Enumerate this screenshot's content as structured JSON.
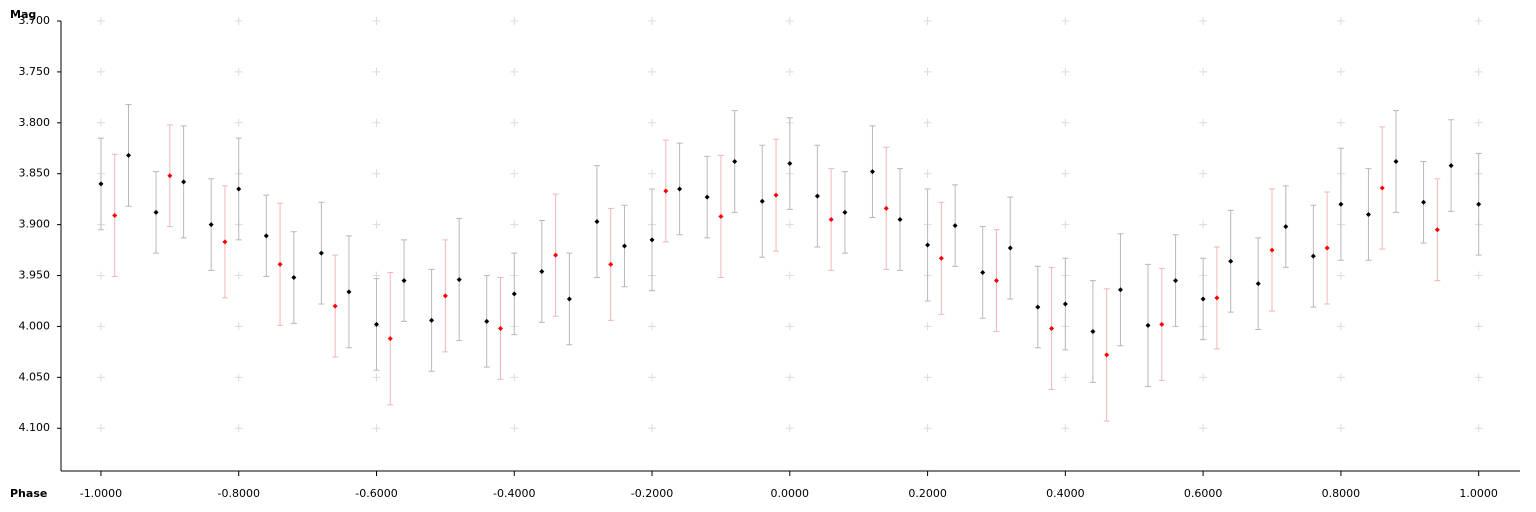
{
  "chart_data": {
    "type": "errorbar_scatter",
    "x_label": "Phase",
    "y_label": "Mag",
    "xlim": [
      -1.058,
      1.06
    ],
    "ylim": [
      4.142,
      3.7
    ],
    "xticks": [
      {
        "value": -1.0,
        "label": "-1.0000"
      },
      {
        "value": -0.8,
        "label": "-0.8000"
      },
      {
        "value": -0.6,
        "label": "-0.6000"
      },
      {
        "value": -0.4,
        "label": "-0.4000"
      },
      {
        "value": -0.2,
        "label": "-0.2000"
      },
      {
        "value": 0,
        "label": "0.0000"
      },
      {
        "value": 0.2,
        "label": "0.2000"
      },
      {
        "value": 0.4,
        "label": "0.4000"
      },
      {
        "value": 0.6,
        "label": "0.6000"
      },
      {
        "value": 0.8,
        "label": "0.8000"
      },
      {
        "value": 1.0,
        "label": "1.0000"
      }
    ],
    "yticks": [
      {
        "value": 3.7,
        "label": "3.700"
      },
      {
        "value": 3.75,
        "label": "3.750"
      },
      {
        "value": 3.8,
        "label": "3.800"
      },
      {
        "value": 3.85,
        "label": "3.850"
      },
      {
        "value": 3.9,
        "label": "3.900"
      },
      {
        "value": 3.95,
        "label": "3.950"
      },
      {
        "value": 4.0,
        "label": "4.000"
      },
      {
        "value": 4.05,
        "label": "4.050"
      },
      {
        "value": 4.1,
        "label": "4.100"
      }
    ],
    "grid": "cross",
    "series": [
      {
        "color": "#000000",
        "error_color": "#b8b8b8",
        "x": [
          -1.0,
          -0.96,
          -0.92,
          -0.88,
          -0.84,
          -0.8,
          -0.76,
          -0.72,
          -0.68,
          -0.64,
          -0.6,
          -0.56,
          -0.52,
          -0.48,
          -0.44,
          -0.4,
          -0.36,
          -0.32,
          -0.28,
          -0.24,
          -0.2,
          -0.16,
          -0.12,
          -0.08,
          -0.04,
          0,
          0.04,
          0.08,
          0.12,
          0.16,
          0.2,
          0.24,
          0.28,
          0.32,
          0.36,
          0.4,
          0.44,
          0.48,
          0.52,
          0.56,
          0.6,
          0.64,
          0.68,
          0.72,
          0.76,
          0.8,
          0.84,
          0.88,
          0.92,
          0.96,
          1.0
        ],
        "values": [
          3.86,
          3.832,
          3.888,
          3.858,
          3.9,
          3.865,
          3.911,
          3.952,
          3.928,
          3.966,
          3.998,
          3.955,
          3.994,
          3.954,
          3.995,
          3.968,
          3.946,
          3.973,
          3.897,
          3.921,
          3.915,
          3.865,
          3.873,
          3.838,
          3.877,
          3.84,
          3.872,
          3.888,
          3.848,
          3.895,
          3.92,
          3.901,
          3.947,
          3.923,
          3.981,
          3.978,
          4.005,
          3.964,
          3.999,
          3.955,
          3.973,
          3.936,
          3.958,
          3.902,
          3.931,
          3.88,
          3.89,
          3.838,
          3.878,
          3.842,
          3.88
        ],
        "errors": [
          0.045,
          0.05,
          0.04,
          0.055,
          0.045,
          0.05,
          0.04,
          0.045,
          0.05,
          0.055,
          0.045,
          0.04,
          0.05,
          0.06,
          0.045,
          0.04,
          0.05,
          0.045,
          0.055,
          0.04,
          0.05,
          0.045,
          0.04,
          0.05,
          0.055,
          0.045,
          0.05,
          0.04,
          0.045,
          0.05,
          0.055,
          0.04,
          0.045,
          0.05,
          0.04,
          0.045,
          0.05,
          0.055,
          0.06,
          0.045,
          0.04,
          0.05,
          0.045,
          0.04,
          0.05,
          0.055,
          0.045,
          0.05,
          0.04,
          0.045,
          0.05
        ]
      },
      {
        "color": "#ff0000",
        "error_color": "#f0b8b8",
        "x": [
          -0.98,
          -0.9,
          -0.82,
          -0.74,
          -0.66,
          -0.58,
          -0.5,
          -0.42,
          -0.34,
          -0.26,
          -0.18,
          -0.1,
          -0.02,
          0.06,
          0.14,
          0.22,
          0.3,
          0.38,
          0.46,
          0.54,
          0.62,
          0.7,
          0.78,
          0.86,
          0.94
        ],
        "values": [
          3.891,
          3.852,
          3.917,
          3.939,
          3.98,
          4.012,
          3.97,
          4.002,
          3.93,
          3.939,
          3.867,
          3.892,
          3.871,
          3.895,
          3.884,
          3.933,
          3.955,
          4.002,
          4.028,
          3.998,
          3.972,
          3.925,
          3.923,
          3.864,
          3.905
        ],
        "errors": [
          0.06,
          0.05,
          0.055,
          0.06,
          0.05,
          0.065,
          0.055,
          0.05,
          0.06,
          0.055,
          0.05,
          0.06,
          0.055,
          0.05,
          0.06,
          0.055,
          0.05,
          0.06,
          0.065,
          0.055,
          0.05,
          0.06,
          0.055,
          0.06,
          0.05
        ]
      }
    ]
  }
}
